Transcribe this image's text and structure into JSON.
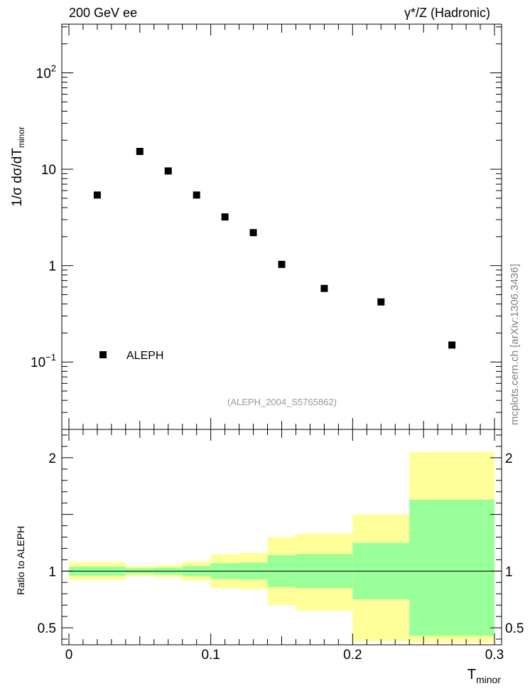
{
  "header": {
    "left": "200 GeV ee",
    "right": "γ*/Z (Hadronic)"
  },
  "watermark": "mcplots.cern.ch [arXiv:1306.3436]",
  "analysis_id": "(ALEPH_2004_S5765862)",
  "colors": {
    "band_inner": "#99ff99",
    "band_outer": "#ffff99",
    "marker": "#000000",
    "analysis_text": "#999999",
    "watermark_text": "#808080"
  },
  "chart_data": [
    {
      "type": "scatter",
      "name": "main",
      "ylabel_parts": {
        "main": "1/σ  dσ/dT",
        "sub": "minor"
      },
      "yscale": "log",
      "ylim": [
        0.02,
        320
      ],
      "xlim": [
        -0.005,
        0.305
      ],
      "yticks": [
        {
          "value": 100,
          "base": "10",
          "exp": "2"
        },
        {
          "value": 10,
          "label": "10"
        },
        {
          "value": 1,
          "label": "1"
        },
        {
          "value": 0.1,
          "base": "10",
          "exp": "−1"
        }
      ],
      "legend": {
        "label": "ALEPH",
        "placement": "bottom-left"
      },
      "series": [
        {
          "name": "ALEPH",
          "x": [
            0.02,
            0.05,
            0.07,
            0.09,
            0.11,
            0.13,
            0.15,
            0.18,
            0.22,
            0.27
          ],
          "y": [
            5.4,
            15.3,
            9.6,
            5.4,
            3.2,
            2.2,
            1.03,
            0.58,
            0.42,
            0.15
          ]
        }
      ]
    },
    {
      "type": "area",
      "name": "ratio",
      "ylabel": "Ratio to ALEPH",
      "xlabel_parts": {
        "main": "T",
        "sub": "minor"
      },
      "xlim": [
        -0.005,
        0.305
      ],
      "ylim": [
        0.35,
        2.25
      ],
      "xticks": [
        {
          "value": 0,
          "label": "0"
        },
        {
          "value": 0.1,
          "label": "0.1"
        },
        {
          "value": 0.2,
          "label": "0.2"
        },
        {
          "value": 0.3,
          "label": "0.3"
        }
      ],
      "yticks": [
        {
          "value": 2,
          "label": "2"
        },
        {
          "value": 1,
          "label": "1"
        },
        {
          "value": 0.5,
          "label": "0.5"
        }
      ],
      "reference_line": 1,
      "bins": [
        {
          "lo": 0.0,
          "hi": 0.04,
          "inner": [
            0.96,
            1.04
          ],
          "outer": [
            0.92,
            1.08
          ]
        },
        {
          "lo": 0.04,
          "hi": 0.06,
          "inner": [
            0.975,
            1.025
          ],
          "outer": [
            0.955,
            1.045
          ]
        },
        {
          "lo": 0.06,
          "hi": 0.08,
          "inner": [
            0.97,
            1.03
          ],
          "outer": [
            0.945,
            1.055
          ]
        },
        {
          "lo": 0.08,
          "hi": 0.1,
          "inner": [
            0.955,
            1.045
          ],
          "outer": [
            0.915,
            1.085
          ]
        },
        {
          "lo": 0.1,
          "hi": 0.12,
          "inner": [
            0.93,
            1.07
          ],
          "outer": [
            0.85,
            1.15
          ]
        },
        {
          "lo": 0.12,
          "hi": 0.14,
          "inner": [
            0.925,
            1.075
          ],
          "outer": [
            0.84,
            1.16
          ]
        },
        {
          "lo": 0.14,
          "hi": 0.16,
          "inner": [
            0.86,
            1.14
          ],
          "outer": [
            0.7,
            1.3
          ]
        },
        {
          "lo": 0.16,
          "hi": 0.2,
          "inner": [
            0.85,
            1.15
          ],
          "outer": [
            0.65,
            1.33
          ]
        },
        {
          "lo": 0.2,
          "hi": 0.24,
          "inner": [
            0.75,
            1.25
          ],
          "outer": [
            0.38,
            1.5
          ]
        },
        {
          "lo": 0.24,
          "hi": 0.3,
          "inner": [
            0.43,
            1.63
          ],
          "outer": [
            0.37,
            2.05
          ]
        }
      ]
    }
  ]
}
